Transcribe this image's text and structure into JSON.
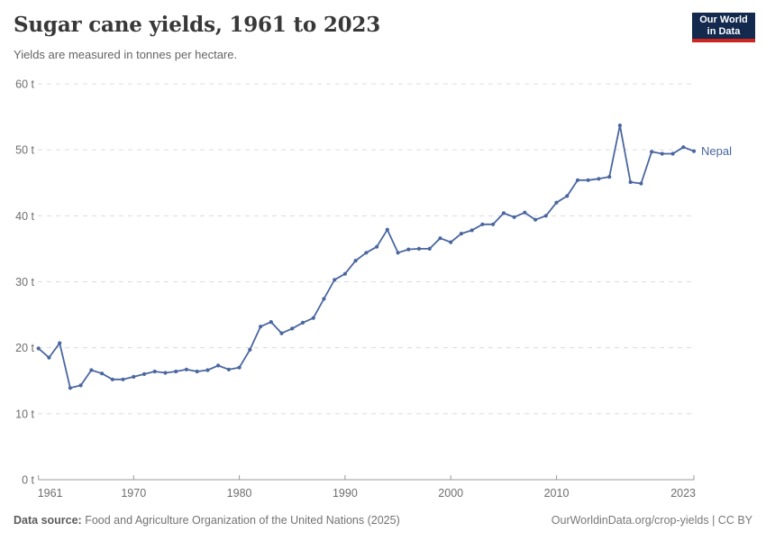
{
  "header": {
    "title": "Sugar cane yields, 1961 to 2023",
    "subtitle": "Yields are measured in tonnes per hectare.",
    "logo": {
      "line1": "Our World",
      "line2": "in Data",
      "bg_color": "#13294E",
      "accent_color": "#CE261F"
    }
  },
  "footer": {
    "source_label": "Data source:",
    "source_text": "Food and Agriculture Organization of the United Nations (2025)",
    "right_text": "OurWorldinData.org/crop-yields | CC BY"
  },
  "chart_data": {
    "type": "line",
    "title": "Sugar cane yields, 1961 to 2023",
    "subtitle": "Yields are measured in tonnes per hectare.",
    "entity": "Nepal",
    "unit": "tonnes per hectare",
    "color": "#4A66A0",
    "grid": "horizontal dashed",
    "legend": "end-of-line entity label",
    "xlim": [
      1961,
      2023
    ],
    "ylim": [
      0,
      60
    ],
    "x": [
      1961,
      1962,
      1963,
      1964,
      1965,
      1966,
      1967,
      1968,
      1969,
      1970,
      1971,
      1972,
      1973,
      1974,
      1975,
      1976,
      1977,
      1978,
      1979,
      1980,
      1981,
      1982,
      1983,
      1984,
      1985,
      1986,
      1987,
      1988,
      1989,
      1990,
      1991,
      1992,
      1993,
      1994,
      1995,
      1996,
      1997,
      1998,
      1999,
      2000,
      2001,
      2002,
      2003,
      2004,
      2005,
      2006,
      2007,
      2008,
      2009,
      2010,
      2011,
      2012,
      2013,
      2014,
      2015,
      2016,
      2017,
      2018,
      2019,
      2020,
      2021,
      2022,
      2023
    ],
    "values": [
      19.9,
      18.5,
      20.7,
      13.9,
      14.3,
      16.6,
      16.1,
      15.2,
      15.2,
      15.6,
      16.0,
      16.4,
      16.2,
      16.4,
      16.7,
      16.4,
      16.6,
      17.3,
      16.7,
      17.0,
      19.7,
      23.2,
      23.9,
      22.2,
      22.9,
      23.8,
      24.5,
      27.4,
      30.3,
      31.2,
      33.2,
      34.4,
      35.3,
      37.9,
      34.4,
      34.9,
      35.0,
      35.0,
      36.6,
      36.0,
      37.3,
      37.8,
      38.7,
      38.7,
      40.4,
      39.8,
      40.5,
      39.4,
      40.0,
      42.0,
      43.0,
      45.4,
      45.4,
      45.6,
      45.9,
      53.7,
      45.1,
      44.9,
      49.7,
      49.4,
      49.4,
      50.4,
      49.8
    ],
    "y_ticks": [
      {
        "value": 0,
        "label": "0 t"
      },
      {
        "value": 10,
        "label": "10 t"
      },
      {
        "value": 20,
        "label": "20 t"
      },
      {
        "value": 30,
        "label": "30 t"
      },
      {
        "value": 40,
        "label": "40 t"
      },
      {
        "value": 50,
        "label": "50 t"
      },
      {
        "value": 60,
        "label": "60 t"
      }
    ],
    "x_ticks": [
      {
        "value": 1961,
        "label": "1961"
      },
      {
        "value": 1970,
        "label": "1970"
      },
      {
        "value": 1980,
        "label": "1980"
      },
      {
        "value": 1990,
        "label": "1990"
      },
      {
        "value": 2000,
        "label": "2000"
      },
      {
        "value": 2010,
        "label": "2010"
      },
      {
        "value": 2023,
        "label": "2023"
      }
    ]
  }
}
